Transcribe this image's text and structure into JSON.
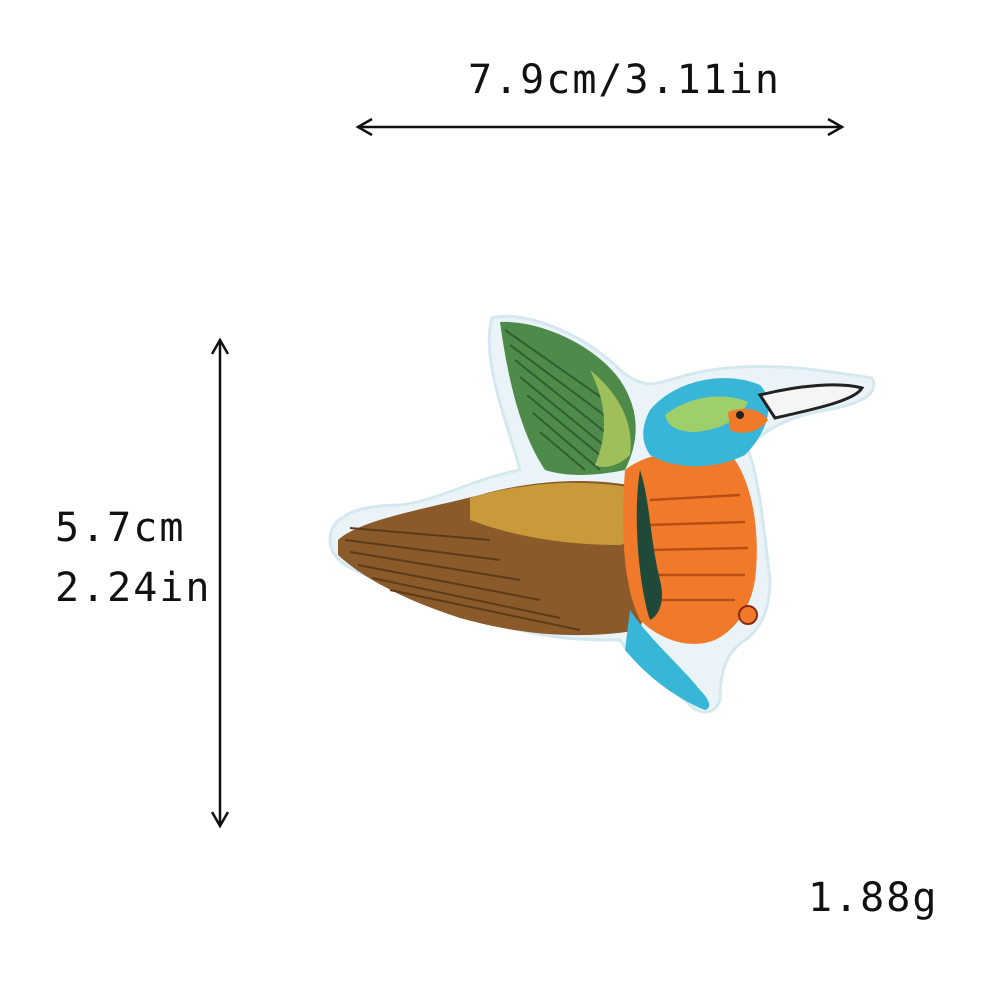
{
  "dimensions": {
    "width_label": "7.9cm/3.11in",
    "height_cm_label": "5.7cm",
    "height_in_label": "2.24in",
    "weight_label": "1.88g"
  },
  "image": {
    "subject": "embroidered kingfisher patch",
    "colors": {
      "background": "#ffffff",
      "patch_border": "#eaf4f8",
      "wing_green": "#4e8a4a",
      "wing_brown": "#8a5a2a",
      "body_orange": "#f07a2a",
      "head_blue": "#38b6d8",
      "beak_outline": "#222222"
    }
  }
}
